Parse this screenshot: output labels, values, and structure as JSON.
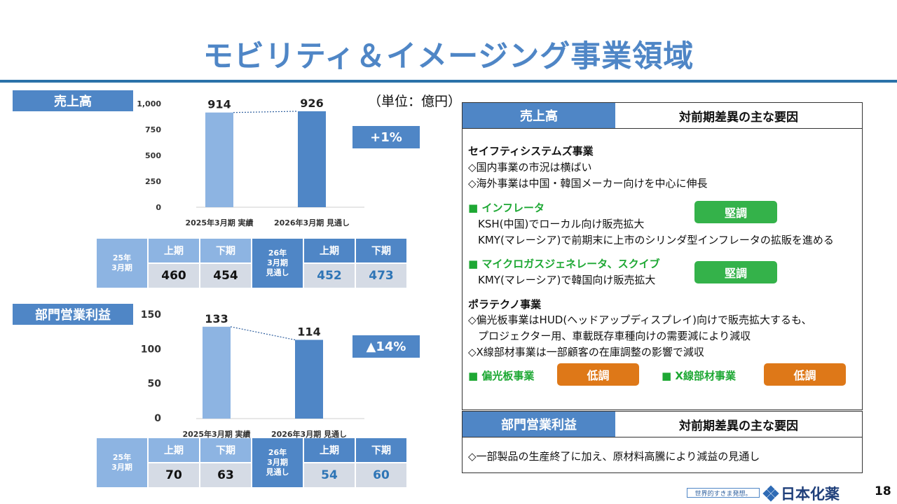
{
  "title": "モビリティ＆イメージング事業領域",
  "unit": "（単位：億円）",
  "sales": {
    "label": "売上高",
    "delta": "+1%",
    "chart_data": {
      "type": "bar",
      "categories": [
        "2025年3月期 実績",
        "2026年3月期 見通し"
      ],
      "values": [
        914,
        926
      ],
      "ylim": [
        0,
        1000
      ],
      "yticks": [
        "0",
        "250",
        "500",
        "750",
        "1,000"
      ],
      "data_labels": [
        "914",
        "926"
      ],
      "colors": [
        "#8db4e2",
        "#4f86c6"
      ]
    },
    "table": {
      "fy25": "25年\n3月期",
      "fy26": "26年\n3月期\n見通し",
      "h1": "上期",
      "h2": "下期",
      "fy25_values": [
        "460",
        "454"
      ],
      "fy26_values": [
        "452",
        "473"
      ]
    }
  },
  "profit": {
    "label": "部門営業利益",
    "delta": "▲14%",
    "chart_data": {
      "type": "bar",
      "categories": [
        "2025年3月期 実績",
        "2026年3月期 見通し"
      ],
      "values": [
        133,
        114
      ],
      "ylim": [
        0,
        150
      ],
      "yticks": [
        "0",
        "50",
        "100",
        "150"
      ],
      "data_labels": [
        "133",
        "114"
      ],
      "colors": [
        "#8db4e2",
        "#4f86c6"
      ]
    },
    "table": {
      "fy25": "25年\n3月期",
      "fy26": "26年\n3月期\n見通し",
      "h1": "上期",
      "h2": "下期",
      "fy25_values": [
        "70",
        "63"
      ],
      "fy26_values": [
        "54",
        "60"
      ]
    }
  },
  "sales_panel": {
    "head_left": "売上高",
    "head_right": "対前期差異の主な要因",
    "safety_title": "セイフティシステムズ事業",
    "safety_1": "◇国内事業の市況は横ばい",
    "safety_2": "◇海外事業は中国・韓国メーカー向けを中心に伸長",
    "inflator_title": "■ インフレータ",
    "inflator_1": "KSH(中国)でローカル向け販売拡大",
    "inflator_2": "KMY(マレーシア)で前期末に上市のシリンダ型インフレータの拡販を進める",
    "inflator_status": "堅調",
    "micro_title": "■ マイクロガスジェネレータ、スクイブ",
    "micro_1": "KMY(マレーシア)で韓国向け販売拡大",
    "micro_status": "堅調",
    "polatechno_title": "ポラテクノ事業",
    "polatechno_1": "◇偏光板事業はHUD(ヘッドアップディスプレイ)向けで販売拡大するも、",
    "polatechno_2": "プロジェクター用、車載既存車種向けの需要減により減収",
    "polatechno_3": "◇X線部材事業は一部顧客の在庫調整の影響で減収",
    "polarizer_title": "■ 偏光板事業",
    "polarizer_status": "低調",
    "xray_title": "■ X線部材事業",
    "xray_status": "低調"
  },
  "profit_panel": {
    "head_left": "部門営業利益",
    "head_right": "対前期差異の主な要因",
    "line_1": "◇一部製品の生産終了に加え、原材料高騰により減益の見通し"
  },
  "footer": {
    "slogan": "世界的すきま発想。",
    "brand": "日本化薬",
    "page": "18"
  }
}
